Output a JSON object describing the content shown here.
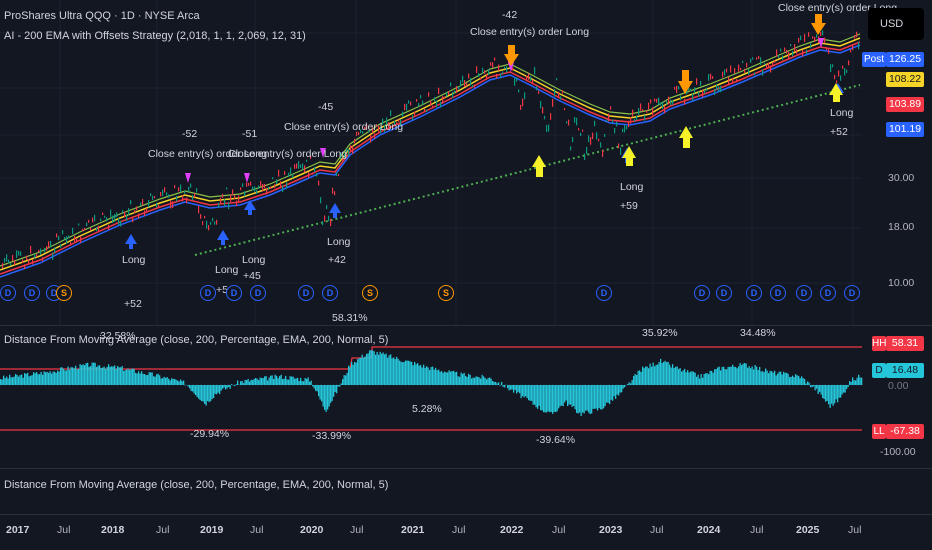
{
  "header": {
    "symbol_line": "ProShares Ultra QQQ · 1D · NYSE Arca",
    "strategy_line": "AI - 200 EMA with Offsets Strategy (2,018, 1, 1, 2,069, 12, 31)"
  },
  "currency_button": "USD",
  "price_tags": {
    "post_label": "Post",
    "post_value": "126.25",
    "ema_upper": "108.22",
    "ema_mid": "103.89",
    "ema_lower": "101.19"
  },
  "price_axis": [
    "30.00",
    "18.00",
    "10.00"
  ],
  "trade_annotations": [
    {
      "id": "t1",
      "pnl": "-52",
      "text": "Close entry(s) order Long"
    },
    {
      "id": "t2",
      "pnl": "-51",
      "text": "Close entry(s) order Long"
    },
    {
      "id": "t3",
      "pnl": "-45",
      "text": "Close entry(s) order Long"
    },
    {
      "id": "t4",
      "pnl": "-42",
      "text": "Close entry(s) order Long"
    },
    {
      "id": "t5",
      "pnl": "",
      "text": "Close entry(s) order Long"
    }
  ],
  "long_labels": [
    {
      "label": "Long",
      "pnl": "+52"
    },
    {
      "label": "Long",
      "pnl": "+51"
    },
    {
      "label": "Long",
      "pnl": "+45"
    },
    {
      "label": "Long",
      "pnl": "+42"
    },
    {
      "label": "Long",
      "pnl": "+59"
    },
    {
      "label": "Long",
      "pnl": "+52"
    }
  ],
  "event_markers": {
    "dividend": "D",
    "split": "S"
  },
  "indicator_1": {
    "title": "Distance From Moving Average (close, 200, Percentage, EMA, 200, Normal, 5)",
    "title_overlap": "32.58%",
    "peaks": [
      "58.31%",
      "35.92%",
      "34.48%"
    ],
    "troughs": [
      "-29.94%",
      "-33.99%",
      "-39.64%"
    ],
    "mid_label": "5.28%",
    "hh_tag": "HH",
    "hh_value": "58.31",
    "d_tag": "D",
    "d_value": "16.48",
    "ll_tag": "LL",
    "ll_value": "-67.38",
    "axis_partial": "0.00",
    "axis_bottom": "-100.00"
  },
  "indicator_2": {
    "title": "Distance From Moving Average (close, 200, Percentage, EMA, 200, Normal, 5)"
  },
  "time_axis": [
    {
      "label": "2017",
      "bold": true
    },
    {
      "label": "Jul",
      "bold": false
    },
    {
      "label": "2018",
      "bold": true
    },
    {
      "label": "Jul",
      "bold": false
    },
    {
      "label": "2019",
      "bold": true
    },
    {
      "label": "Jul",
      "bold": false
    },
    {
      "label": "2020",
      "bold": true
    },
    {
      "label": "Jul",
      "bold": false
    },
    {
      "label": "2021",
      "bold": true
    },
    {
      "label": "Jul",
      "bold": false
    },
    {
      "label": "2022",
      "bold": true
    },
    {
      "label": "Jul",
      "bold": false
    },
    {
      "label": "2023",
      "bold": true
    },
    {
      "label": "Jul",
      "bold": false
    },
    {
      "label": "2024",
      "bold": true
    },
    {
      "label": "Jul",
      "bold": false
    },
    {
      "label": "2025",
      "bold": true
    },
    {
      "label": "Jul",
      "bold": false
    }
  ],
  "colors": {
    "background": "#131722",
    "ema_yellow": "#f5d327",
    "ema_red": "#f23645",
    "ema_blue": "#2962ff",
    "histogram": "#26c6da",
    "trend_dotted": "#4caf50",
    "hh_ll_line": "#f23645"
  }
}
